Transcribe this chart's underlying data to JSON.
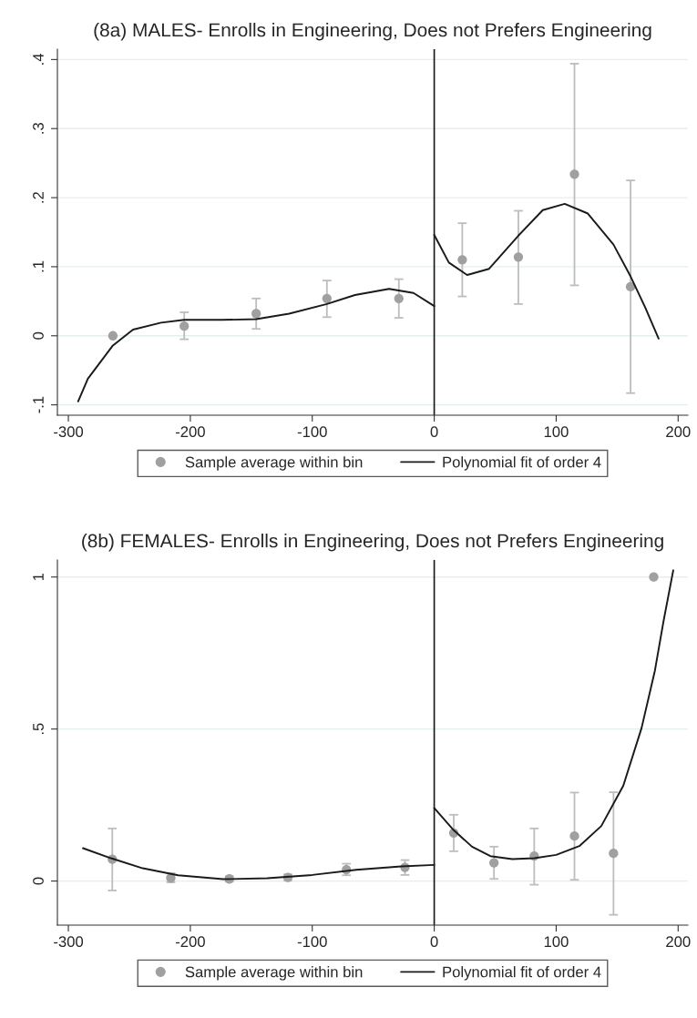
{
  "chart_data": [
    {
      "type": "scatter",
      "title": "(8a) MALES- Enrolls in Engineering, Does not Prefers Engineering",
      "xlim": [
        -309,
        208
      ],
      "ylim": [
        -0.115,
        0.415
      ],
      "xticks": [
        -300,
        -200,
        -100,
        0,
        100,
        200
      ],
      "yticks": [
        {
          "value": -0.1,
          "label": "-.1"
        },
        0,
        {
          "value": 0.1,
          "label": ".1"
        },
        {
          "value": 0.2,
          "label": ".2"
        },
        {
          "value": 0.3,
          "label": ".3"
        },
        {
          "value": 0.4,
          "label": ".4"
        }
      ],
      "grid": "y",
      "legend": "bottom",
      "ref_lines": [
        {
          "axis": "x",
          "value": 0,
          "color": "#1a1a1a"
        }
      ],
      "series": [
        {
          "name": "Sample average within bin",
          "marker": "circle",
          "color": "#a0a0a0",
          "x": [
            -263.5,
            -205,
            -146,
            -88,
            -29,
            23,
            69,
            115,
            161
          ],
          "values": [
            0,
            0.014,
            0.032,
            0.054,
            0.054,
            0.11,
            0.114,
            0.234,
            0.071
          ],
          "errors": [
            null,
            [
              -0.005,
              0.034
            ],
            [
              0.01,
              0.054
            ],
            [
              0.027,
              0.08
            ],
            [
              0.026,
              0.082
            ],
            [
              0.057,
              0.163
            ],
            [
              0.046,
              0.181
            ],
            [
              0.073,
              0.394
            ],
            [
              -0.083,
              0.225
            ]
          ]
        },
        {
          "name": "Polynomial fit of order 4",
          "type": "line",
          "color": "#1a1a1a",
          "x": [
            -292,
            -284,
            -263.5,
            -247,
            -224,
            -205,
            -174,
            -146,
            -119,
            -88,
            -65,
            -37,
            -17,
            0
          ],
          "values": [
            -0.095,
            -0.062,
            -0.014,
            0.009,
            0.019,
            0.023,
            0.023,
            0.024,
            0.032,
            0.046,
            0.059,
            0.068,
            0.062,
            0.043
          ]
        },
        {
          "type": "line",
          "color": "#1a1a1a",
          "x": [
            0,
            12,
            27,
            45,
            69,
            89,
            107,
            126,
            147,
            161,
            173,
            184
          ],
          "values": [
            0.146,
            0.106,
            0.088,
            0.097,
            0.145,
            0.182,
            0.191,
            0.177,
            0.132,
            0.086,
            0.041,
            -0.004
          ]
        }
      ]
    },
    {
      "type": "scatter",
      "title": "(8b) FEMALES- Enrolls in Engineering, Does not Prefers Engineering",
      "xlim": [
        -309,
        208
      ],
      "ylim": [
        -0.145,
        1.056
      ],
      "xticks": [
        -300,
        -200,
        -100,
        0,
        100,
        200
      ],
      "yticks": [
        0,
        {
          "value": 0.5,
          "label": ".5"
        },
        1
      ],
      "grid": "y",
      "legend": "bottom",
      "ref_lines": [
        {
          "axis": "x",
          "value": 0,
          "color": "#1a1a1a"
        }
      ],
      "series": [
        {
          "name": "Sample average within bin",
          "marker": "circle",
          "color": "#a0a0a0",
          "x": [
            -264,
            -216,
            -168,
            -120,
            -72,
            -24,
            16,
            49,
            82,
            115,
            147,
            180
          ],
          "values": [
            0.072,
            0.01,
            0.007,
            0.012,
            0.037,
            0.045,
            0.158,
            0.06,
            0.082,
            0.148,
            0.091,
            1.0
          ],
          "errors": [
            [
              -0.031,
              0.173
            ],
            [
              -0.004,
              0.026
            ],
            [
              -0.002,
              0.016
            ],
            [
              0.001,
              0.022
            ],
            [
              0.019,
              0.057
            ],
            [
              0.02,
              0.069
            ],
            [
              0.098,
              0.218
            ],
            [
              0.007,
              0.113
            ],
            [
              -0.012,
              0.173
            ],
            [
              0.004,
              0.291
            ],
            [
              -0.111,
              0.292
            ],
            null
          ]
        },
        {
          "name": "Polynomial fit of order 4",
          "type": "line",
          "color": "#1a1a1a",
          "x": [
            -288,
            -265,
            -239,
            -210,
            -173,
            -137,
            -100,
            -64,
            -27,
            0
          ],
          "values": [
            0.108,
            0.075,
            0.042,
            0.019,
            0.006,
            0.009,
            0.02,
            0.037,
            0.048,
            0.053
          ]
        },
        {
          "type": "line",
          "color": "#1a1a1a",
          "x": [
            0,
            16,
            31,
            46,
            64,
            82,
            100,
            119,
            137,
            155,
            170,
            181,
            188,
            196
          ],
          "values": [
            0.24,
            0.167,
            0.113,
            0.082,
            0.072,
            0.075,
            0.086,
            0.115,
            0.181,
            0.313,
            0.503,
            0.693,
            0.854,
            1.022
          ]
        }
      ]
    }
  ]
}
